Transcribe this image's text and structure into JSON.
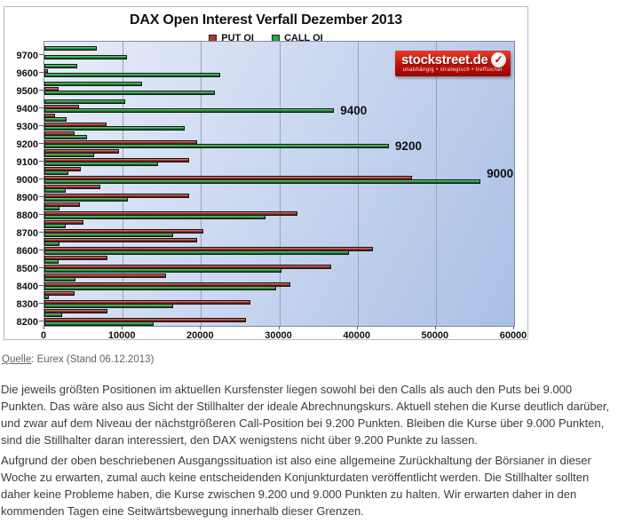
{
  "chart_data": {
    "type": "bar",
    "orientation": "horizontal",
    "title": "DAX Open Interest Verfall Dezember 2013",
    "categories": [
      9750,
      9700,
      9650,
      9600,
      9550,
      9500,
      9450,
      9400,
      9350,
      9300,
      9250,
      9200,
      9150,
      9100,
      9050,
      9000,
      8950,
      8900,
      8850,
      8800,
      8750,
      8700,
      8650,
      8600,
      8550,
      8500,
      8450,
      8400,
      8350,
      8300,
      8250,
      8200
    ],
    "series": [
      {
        "name": "PUT OI",
        "color": "#a83a34",
        "values": [
          0,
          0,
          0,
          400,
          0,
          1800,
          0,
          4400,
          1400,
          7900,
          3900,
          19500,
          9500,
          18500,
          4600,
          47000,
          7200,
          18500,
          4500,
          32300,
          5000,
          20300,
          19500,
          42000,
          8000,
          36600,
          15500,
          31400,
          3800,
          26300,
          8000,
          25700
        ]
      },
      {
        "name": "CALL OI",
        "color": "#2f9f46",
        "values": [
          6700,
          10500,
          4200,
          22500,
          12500,
          21800,
          10300,
          37000,
          2800,
          17900,
          5500,
          44000,
          6300,
          14500,
          3100,
          55700,
          2700,
          10700,
          1900,
          28200,
          2700,
          16400,
          1900,
          38900,
          1800,
          30300,
          4000,
          29600,
          600,
          16400,
          2250,
          13900
        ]
      }
    ],
    "xlim": [
      0,
      60000
    ],
    "x_ticks": [
      0,
      10000,
      20000,
      30000,
      40000,
      50000,
      60000
    ],
    "y_label_interval": 100,
    "grid": true,
    "legend_position": "top",
    "annotations": [
      {
        "text": "9400",
        "category": 9400,
        "placement": "right"
      },
      {
        "text": "9200",
        "category": 9200,
        "placement": "right"
      },
      {
        "text": "9000",
        "category": 9000,
        "placement": "above-right"
      }
    ]
  },
  "logo": {
    "name": "stockstreet.de",
    "check": "✓",
    "tagline": "unabhängig • strategisch • treffsicher",
    "background": "#c01009"
  },
  "source": {
    "label": "Quelle",
    "text": ": Eurex  (Stand 06.12.2013)"
  },
  "paragraphs": {
    "p1": "Die jeweils größten Positionen im aktuellen Kursfenster liegen sowohl bei den Calls als auch den Puts bei 9.000 Punkten. Das wäre also aus Sicht der Stillhalter der ideale Abrechnungskurs. Aktuell stehen die Kurse deutlich darüber, und zwar auf dem Niveau der nächstgrößeren Call-Position bei 9.200 Punkten. Bleiben die Kurse über 9.000 Punkten, sind die Stillhalter daran interessiert, den DAX wenigstens nicht über 9.200 Punkte zu lassen.",
    "p2": "Aufgrund der oben beschriebenen Ausgangssituation ist also eine allgemeine Zurückhaltung der Börsianer in dieser Woche zu erwarten, zumal auch keine entscheidenden Konjunkturdaten veröffentlicht werden. Die Stillhalter sollten daher keine Probleme haben, die Kurse zwischen 9.200 und 9.000 Punkten zu halten. Wir erwarten daher in den kommenden Tagen eine Seitwärtsbewegung innerhalb dieser Grenzen."
  },
  "colors": {
    "put_bar": "#a83a34",
    "call_bar": "#2f9f46",
    "plot_bg_from": "#e6ecf9",
    "plot_bg_to": "#a9c0e6",
    "gridline": "#98a3b5",
    "text": "#3c3c3c"
  }
}
